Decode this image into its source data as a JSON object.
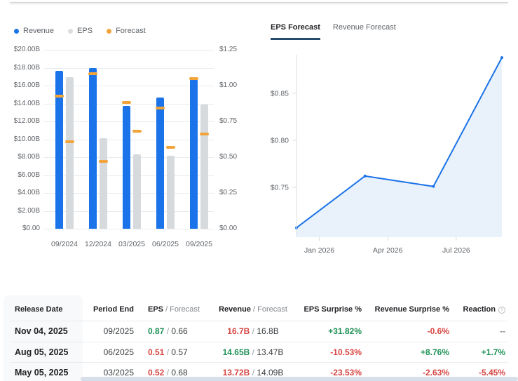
{
  "colors": {
    "blue": "#1a73e8",
    "gray_bar": "#d7dadd",
    "gray_dot": "#dadce0",
    "orange": "#f2a43b",
    "green": "#1e9156",
    "red": "#d64541",
    "muted": "#85898d",
    "text_dark": "#202124",
    "text_gray": "#5f6368",
    "grid": "#e9ebee",
    "axis": "#dadce0",
    "tab_underline": "#254a6d",
    "area_fill": "#e9f1fb",
    "scrollbar": "#d7e0ea"
  },
  "legend": {
    "items": [
      {
        "label": "Revenue",
        "color": "#1a73e8"
      },
      {
        "label": "EPS",
        "color": "#dadce0"
      },
      {
        "label": "Forecast",
        "color": "#f2a43b"
      }
    ]
  },
  "tabs": {
    "items": [
      {
        "label": "EPS Forecast",
        "active": true
      },
      {
        "label": "Revenue Forecast",
        "active": false
      }
    ]
  },
  "chart_data": [
    {
      "type": "bar",
      "title": "Quarterly Revenue & EPS vs Forecast",
      "categories": [
        "09/2024",
        "12/2024",
        "03/2025",
        "06/2025",
        "09/2025"
      ],
      "series": [
        {
          "name": "Revenue",
          "axis": "left",
          "style": "bar",
          "color_key": "blue",
          "values": [
            17.65,
            17.95,
            13.72,
            14.65,
            16.7
          ]
        },
        {
          "name": "Revenue Forecast",
          "axis": "left",
          "style": "dash",
          "color_key": "orange",
          "values": [
            14.85,
            17.3,
            14.09,
            13.47,
            16.8
          ]
        },
        {
          "name": "EPS",
          "axis": "right",
          "style": "bar",
          "color_key": "gray_bar",
          "values": [
            1.06,
            0.63,
            0.52,
            0.51,
            0.87
          ]
        },
        {
          "name": "EPS Forecast",
          "axis": "right",
          "style": "dash",
          "color_key": "orange",
          "values": [
            0.61,
            0.47,
            0.68,
            0.57,
            0.66
          ]
        }
      ],
      "left_axis": {
        "min": 0,
        "max": 20,
        "tick_labels": [
          "$20.00B",
          "$18.00B",
          "$16.00B",
          "$14.00B",
          "$12.00B",
          "$10.00B",
          "$8.00B",
          "$6.00B",
          "$4.00B",
          "$2.00B",
          "$0.00"
        ]
      },
      "right_axis": {
        "min": 0,
        "max": 1.25,
        "tick_labels": [
          "$1.25",
          "$1.00",
          "$0.75",
          "$0.50",
          "$0.25",
          "$0.00"
        ]
      },
      "grid": true,
      "legend_position": "top-left"
    },
    {
      "type": "area",
      "title": "EPS Forecast",
      "x_unit": "month",
      "points": [
        {
          "label": "Dec 2025",
          "month_index": 0,
          "value": 0.707
        },
        {
          "label": "Mar 2026",
          "month_index": 3,
          "value": 0.762
        },
        {
          "label": "Jun 2026",
          "month_index": 6,
          "value": 0.751
        },
        {
          "label": "Sep 2026",
          "month_index": 9,
          "value": 0.888
        }
      ],
      "x_ticks": [
        {
          "label": "Jan 2026",
          "month_index": 1
        },
        {
          "label": "Apr 2026",
          "month_index": 4
        },
        {
          "label": "Jul 2026",
          "month_index": 7
        }
      ],
      "y_ticks": [
        {
          "label": "$0.85",
          "value": 0.85
        },
        {
          "label": "$0.80",
          "value": 0.8
        },
        {
          "label": "$0.75",
          "value": 0.75
        }
      ],
      "ylim": [
        0.698,
        0.895
      ],
      "grid": false,
      "legend_position": "none"
    }
  ],
  "table": {
    "header": {
      "release_date": "Release Date",
      "period_end": "Period End",
      "eps": "EPS",
      "eps_sub": " / Forecast",
      "revenue": "Revenue",
      "revenue_sub": " / Forecast",
      "eps_surprise": "EPS Surprise %",
      "revenue_surprise": "Revenue Surprise %",
      "reaction": "Reaction"
    },
    "rows": [
      {
        "release_date": "Nov 04, 2025",
        "period_end": "09/2025",
        "eps": "0.87",
        "eps_tone": "green",
        "eps_forecast": "0.66",
        "revenue": "16.7B",
        "revenue_tone": "red",
        "revenue_forecast": "16.8B",
        "eps_surprise": "+31.82%",
        "eps_surprise_tone": "green",
        "revenue_surprise": "-0.6%",
        "revenue_surprise_tone": "red",
        "reaction": "--",
        "reaction_tone": "muted"
      },
      {
        "release_date": "Aug 05, 2025",
        "period_end": "06/2025",
        "eps": "0.51",
        "eps_tone": "red",
        "eps_forecast": "0.57",
        "revenue": "14.65B",
        "revenue_tone": "green",
        "revenue_forecast": "13.47B",
        "eps_surprise": "-10.53%",
        "eps_surprise_tone": "red",
        "revenue_surprise": "+8.76%",
        "revenue_surprise_tone": "green",
        "reaction": "+1.7%",
        "reaction_tone": "green"
      },
      {
        "release_date": "May 05, 2025",
        "period_end": "03/2025",
        "eps": "0.52",
        "eps_tone": "red",
        "eps_forecast": "0.68",
        "revenue": "13.72B",
        "revenue_tone": "red",
        "revenue_forecast": "14.09B",
        "eps_surprise": "-23.53%",
        "eps_surprise_tone": "red",
        "revenue_surprise": "-2.63%",
        "revenue_surprise_tone": "red",
        "reaction": "-5.45%",
        "reaction_tone": "red"
      }
    ]
  }
}
